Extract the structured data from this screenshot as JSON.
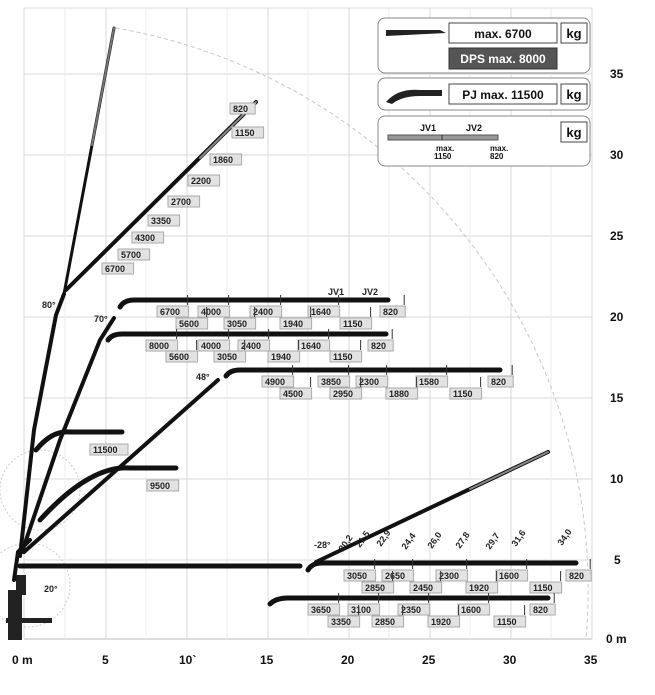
{
  "axis": {
    "x_ticks": [
      "0 m",
      "5",
      "10`",
      "15",
      "20",
      "25",
      "30",
      "35"
    ],
    "y_ticks": [
      "5",
      "10",
      "15",
      "20",
      "25",
      "30",
      "35"
    ],
    "y_zero": "0 m"
  },
  "legend": {
    "std": {
      "label": "max. 6700",
      "unit": "kg"
    },
    "dps": {
      "label": "DPS max. 8000"
    },
    "pj": {
      "label": "PJ max. 11500",
      "unit": "kg"
    },
    "jib": {
      "jv1": "JV1",
      "jv2": "JV2",
      "unit": "kg",
      "max1_a": "max.",
      "max1_b": "1150",
      "max2_a": "max.",
      "max2_b": "820"
    }
  },
  "angles": {
    "a80": "80°",
    "a70": "70°",
    "a48": "48°",
    "a20": "20°",
    "a28": "-28°"
  },
  "jib_labels": {
    "jv1": "JV1",
    "jv2": "JV2"
  },
  "hook_loads": {
    "h1": "11500",
    "h2": "9500"
  },
  "diag_loads": [
    "820",
    "1150",
    "1860",
    "2200",
    "2700",
    "3350",
    "4300",
    "5700",
    "6700"
  ],
  "row70a_top": [
    "6700",
    "4000",
    "2400",
    "1640",
    "820"
  ],
  "row70a_bot": [
    "5600",
    "3050",
    "1940",
    "1150"
  ],
  "row70b_top": [
    "8000",
    "4000",
    "2400",
    "1640",
    "820"
  ],
  "row70b_bot": [
    "5600",
    "3050",
    "1940",
    "1150"
  ],
  "row48_top": [
    "4900",
    "3850",
    "2300",
    "1580",
    "820"
  ],
  "row48_bot": [
    "4500",
    "2950",
    "1880",
    "1150"
  ],
  "row0_top": [
    "3050",
    "2650",
    "2300",
    "1600",
    "820"
  ],
  "row0_bot": [
    "2850",
    "2450",
    "1920",
    "1150"
  ],
  "rowlow_top": [
    "3650",
    "3100",
    "2350",
    "1600",
    "820"
  ],
  "rowlow_bot": [
    "3350",
    "2850",
    "1920",
    "1150"
  ],
  "neg_reach": [
    "20,2",
    "21,5",
    "22,9",
    "24,4",
    "26,0",
    "27,8",
    "29,7",
    "31,6",
    "34,0"
  ]
}
